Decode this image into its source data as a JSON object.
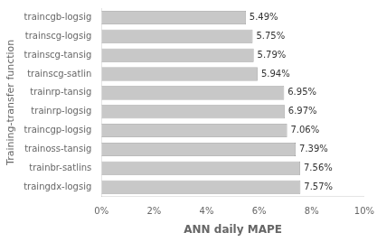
{
  "chart_data": {
    "type": "bar",
    "orientation": "horizontal",
    "categories": [
      "traingdx-logsig",
      "trainbr-satlins",
      "trainoss-tansig",
      "traincgp-logsig",
      "trainrp-logsig",
      "trainrp-tansig",
      "trainscg-satlin",
      "trainscg-tansig",
      "trainscg-logsig",
      "traincgb-logsig"
    ],
    "values": [
      7.57,
      7.56,
      7.39,
      7.06,
      6.97,
      6.95,
      5.94,
      5.79,
      5.75,
      5.49
    ],
    "value_labels": [
      "7.57%",
      "7.56%",
      "7.39%",
      "7.06%",
      "6.97%",
      "6.95%",
      "5.94%",
      "5.79%",
      "5.75%",
      "5.49%"
    ],
    "color": "#c8c8c8",
    "xlabel": "ANN daily MAPE",
    "ylabel": "Training-transfer function",
    "xlim": [
      0,
      10
    ],
    "xticks": [
      {
        "value": 0,
        "label": "0%"
      },
      {
        "value": 2,
        "label": "2%"
      },
      {
        "value": 4,
        "label": "4%"
      },
      {
        "value": 6,
        "label": "6%"
      },
      {
        "value": 8,
        "label": "8%"
      },
      {
        "value": 10,
        "label": "10%"
      }
    ],
    "grid": false,
    "data_labels": true
  }
}
